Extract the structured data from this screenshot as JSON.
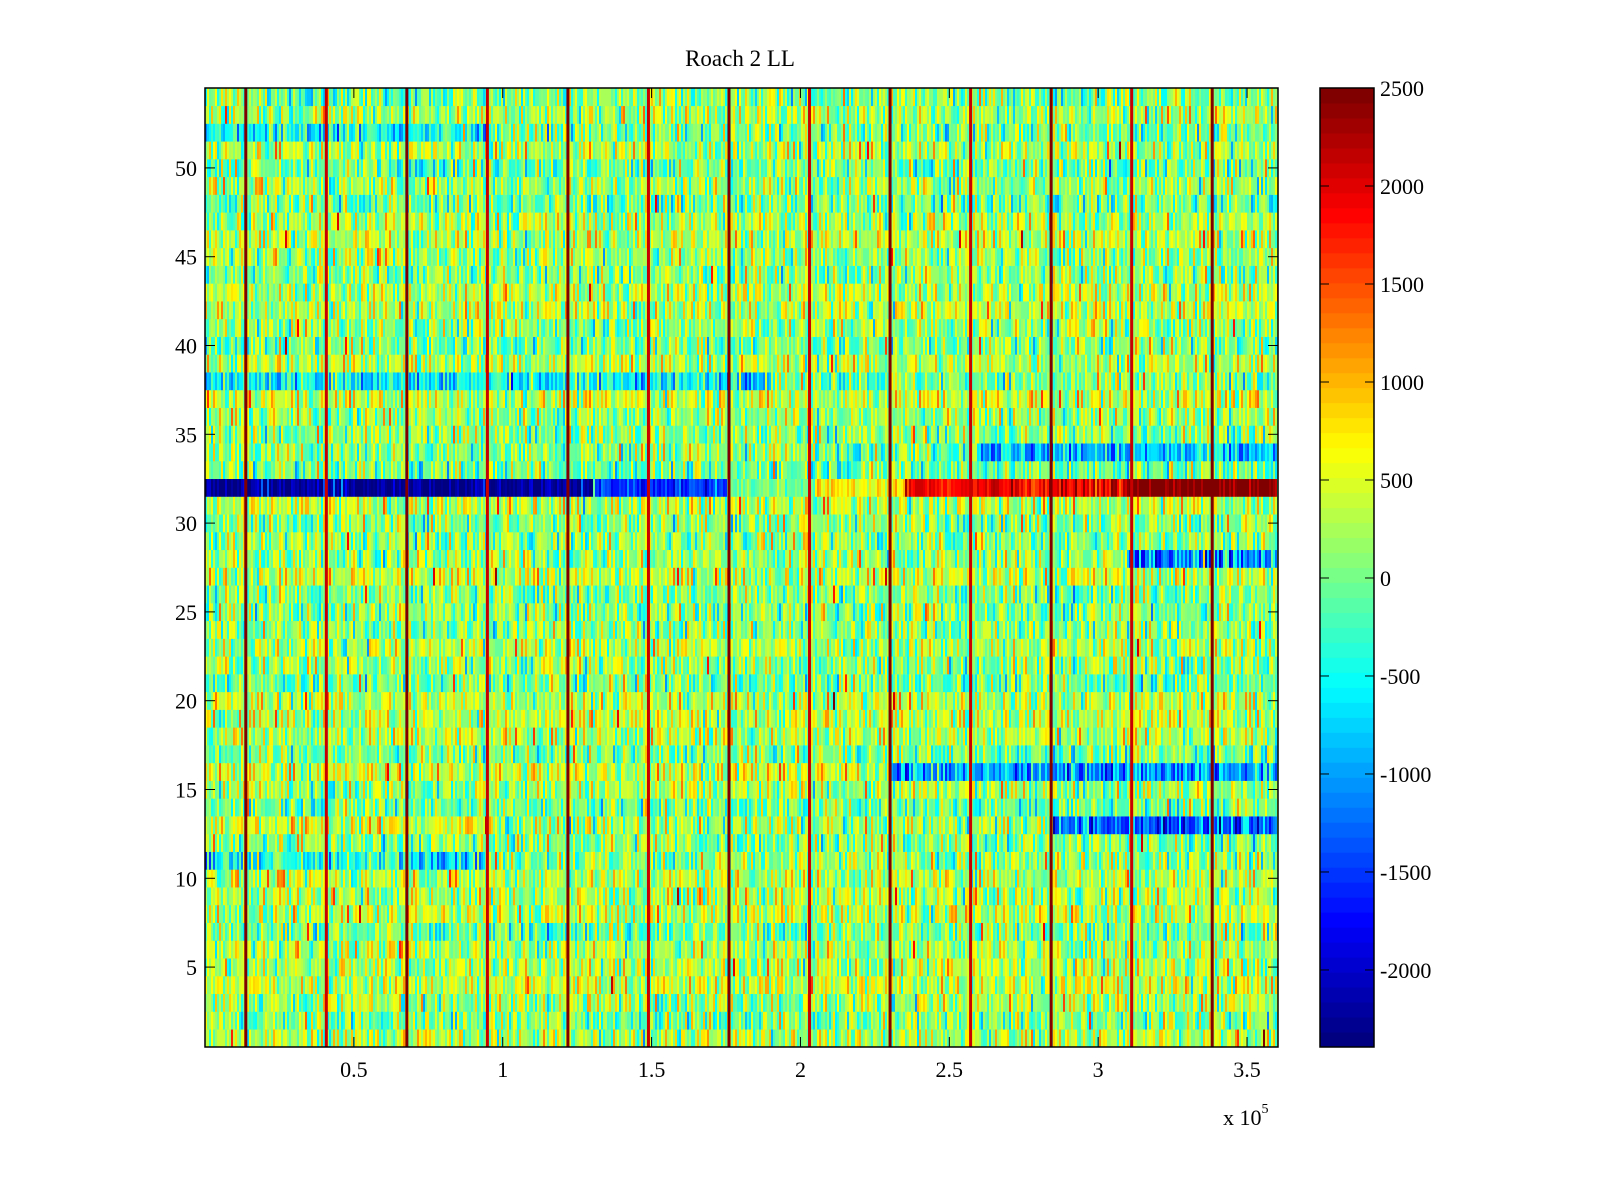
{
  "chart_data": {
    "type": "heatmap",
    "title": "Roach 2 LL",
    "xlabel": "",
    "ylabel": "",
    "x_multiplier_label": "x 10",
    "x_multiplier_exponent": "5",
    "xlim": [
      0,
      360400
    ],
    "ylim": [
      0.5,
      54.5
    ],
    "rows": 54,
    "xticks": [
      {
        "value": 50000,
        "label": "0.5"
      },
      {
        "value": 100000,
        "label": "1"
      },
      {
        "value": 150000,
        "label": "1.5"
      },
      {
        "value": 200000,
        "label": "2"
      },
      {
        "value": 250000,
        "label": "2.5"
      },
      {
        "value": 300000,
        "label": "3"
      },
      {
        "value": 350000,
        "label": "3.5"
      }
    ],
    "yticks": [
      {
        "value": 5,
        "label": "5"
      },
      {
        "value": 10,
        "label": "10"
      },
      {
        "value": 15,
        "label": "15"
      },
      {
        "value": 20,
        "label": "20"
      },
      {
        "value": 25,
        "label": "25"
      },
      {
        "value": 30,
        "label": "30"
      },
      {
        "value": 35,
        "label": "35"
      },
      {
        "value": 40,
        "label": "40"
      },
      {
        "value": 45,
        "label": "45"
      },
      {
        "value": 50,
        "label": "50"
      }
    ],
    "colormap": "jet",
    "clim": [
      -2393,
      2500
    ],
    "colorbar_ticks": [
      {
        "value": 2500,
        "label": "2500"
      },
      {
        "value": 2000,
        "label": "2000"
      },
      {
        "value": 1500,
        "label": "1500"
      },
      {
        "value": 1000,
        "label": "1000"
      },
      {
        "value": 500,
        "label": "500"
      },
      {
        "value": 0,
        "label": "0"
      },
      {
        "value": -500,
        "label": "-500"
      },
      {
        "value": -1000,
        "label": "-1000"
      },
      {
        "value": -1500,
        "label": "-1500"
      },
      {
        "value": -2000,
        "label": "-2000"
      }
    ],
    "grid": false,
    "baseline_level": 150,
    "noise_amplitude": 450,
    "periodic_spikes": {
      "first_x": 13700,
      "period": 27050,
      "count": 13,
      "value": 2500
    },
    "row_features": [
      {
        "row": 32,
        "description_values": [
          {
            "x_from": 0,
            "x_to": 130000,
            "value": -2250
          },
          {
            "x_from": 130000,
            "x_to": 175000,
            "value": -1500
          },
          {
            "x_from": 175000,
            "x_to": 205000,
            "value": 0
          },
          {
            "x_from": 205000,
            "x_to": 235000,
            "value": 700
          },
          {
            "x_from": 235000,
            "x_to": 310000,
            "value": 1900
          },
          {
            "x_from": 310000,
            "x_to": 360400,
            "value": 2500
          }
        ]
      },
      {
        "row": 38,
        "description_values": [
          {
            "x_from": 0,
            "x_to": 190000,
            "value": -550
          },
          {
            "x_from": 190000,
            "x_to": 360400,
            "value": 0
          }
        ]
      },
      {
        "row": 34,
        "description_values": [
          {
            "x_from": 0,
            "x_to": 260000,
            "value": 100
          },
          {
            "x_from": 260000,
            "x_to": 360400,
            "value": -900
          }
        ]
      },
      {
        "row": 13,
        "description_values": [
          {
            "x_from": 0,
            "x_to": 100000,
            "value": 500
          },
          {
            "x_from": 100000,
            "x_to": 285000,
            "value": 150
          },
          {
            "x_from": 285000,
            "x_to": 360400,
            "value": -1300
          }
        ]
      },
      {
        "row": 16,
        "description_values": [
          {
            "x_from": 0,
            "x_to": 230000,
            "value": 400
          },
          {
            "x_from": 230000,
            "x_to": 360400,
            "value": -1000
          }
        ]
      },
      {
        "row": 28,
        "description_values": [
          {
            "x_from": 0,
            "x_to": 310000,
            "value": 150
          },
          {
            "x_from": 310000,
            "x_to": 360400,
            "value": -1100
          }
        ]
      },
      {
        "row": 11,
        "description_values": [
          {
            "x_from": 0,
            "x_to": 95000,
            "value": -450
          },
          {
            "x_from": 95000,
            "x_to": 360400,
            "value": 100
          }
        ]
      },
      {
        "row": 52,
        "description_values": [
          {
            "x_from": 0,
            "x_to": 95000,
            "value": -500
          },
          {
            "x_from": 95000,
            "x_to": 360400,
            "value": 0
          }
        ]
      }
    ]
  }
}
